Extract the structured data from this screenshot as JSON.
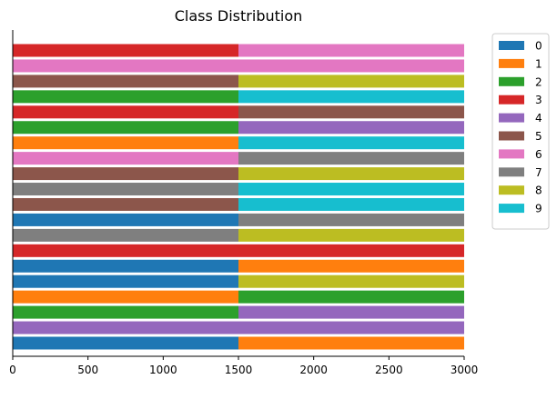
{
  "chart_data": {
    "type": "bar",
    "orientation": "horizontal",
    "stacked": true,
    "title": "Class Distribution",
    "xlabel": "",
    "ylabel": "",
    "xlim": [
      0,
      3000
    ],
    "xticks": [
      0,
      500,
      1000,
      1500,
      2000,
      2500,
      3000
    ],
    "grid": false,
    "legend_position": "outside-top-right",
    "legend": [
      {
        "label": "0",
        "color": "#1f77b4"
      },
      {
        "label": "1",
        "color": "#ff7f0e"
      },
      {
        "label": "2",
        "color": "#2ca02c"
      },
      {
        "label": "3",
        "color": "#d62728"
      },
      {
        "label": "4",
        "color": "#9467bd"
      },
      {
        "label": "5",
        "color": "#8c564b"
      },
      {
        "label": "6",
        "color": "#e377c2"
      },
      {
        "label": "7",
        "color": "#7f7f7f"
      },
      {
        "label": "8",
        "color": "#bcbd22"
      },
      {
        "label": "9",
        "color": "#17becf"
      }
    ],
    "rows": [
      {
        "segments": [
          {
            "class": "0",
            "value": 1500
          },
          {
            "class": "1",
            "value": 1500
          }
        ]
      },
      {
        "segments": [
          {
            "class": "4",
            "value": 1500
          },
          {
            "class": "4",
            "value": 1500
          }
        ]
      },
      {
        "segments": [
          {
            "class": "2",
            "value": 1500
          },
          {
            "class": "4",
            "value": 1500
          }
        ]
      },
      {
        "segments": [
          {
            "class": "1",
            "value": 1500
          },
          {
            "class": "2",
            "value": 1500
          }
        ]
      },
      {
        "segments": [
          {
            "class": "0",
            "value": 1500
          },
          {
            "class": "8",
            "value": 1500
          }
        ]
      },
      {
        "segments": [
          {
            "class": "0",
            "value": 1500
          },
          {
            "class": "1",
            "value": 1500
          }
        ]
      },
      {
        "segments": [
          {
            "class": "3",
            "value": 1500
          },
          {
            "class": "3",
            "value": 1500
          }
        ]
      },
      {
        "segments": [
          {
            "class": "7",
            "value": 1500
          },
          {
            "class": "8",
            "value": 1500
          }
        ]
      },
      {
        "segments": [
          {
            "class": "0",
            "value": 1500
          },
          {
            "class": "7",
            "value": 1500
          }
        ]
      },
      {
        "segments": [
          {
            "class": "5",
            "value": 1500
          },
          {
            "class": "9",
            "value": 1500
          }
        ]
      },
      {
        "segments": [
          {
            "class": "7",
            "value": 1500
          },
          {
            "class": "9",
            "value": 1500
          }
        ]
      },
      {
        "segments": [
          {
            "class": "5",
            "value": 1500
          },
          {
            "class": "8",
            "value": 1500
          }
        ]
      },
      {
        "segments": [
          {
            "class": "6",
            "value": 1500
          },
          {
            "class": "7",
            "value": 1500
          }
        ]
      },
      {
        "segments": [
          {
            "class": "1",
            "value": 1500
          },
          {
            "class": "9",
            "value": 1500
          }
        ]
      },
      {
        "segments": [
          {
            "class": "2",
            "value": 1500
          },
          {
            "class": "4",
            "value": 1500
          }
        ]
      },
      {
        "segments": [
          {
            "class": "3",
            "value": 1500
          },
          {
            "class": "5",
            "value": 1500
          }
        ]
      },
      {
        "segments": [
          {
            "class": "2",
            "value": 1500
          },
          {
            "class": "9",
            "value": 1500
          }
        ]
      },
      {
        "segments": [
          {
            "class": "5",
            "value": 1500
          },
          {
            "class": "8",
            "value": 1500
          }
        ]
      },
      {
        "segments": [
          {
            "class": "6",
            "value": 1500
          },
          {
            "class": "6",
            "value": 1500
          }
        ]
      },
      {
        "segments": [
          {
            "class": "3",
            "value": 1500
          },
          {
            "class": "6",
            "value": 1500
          }
        ]
      }
    ]
  }
}
